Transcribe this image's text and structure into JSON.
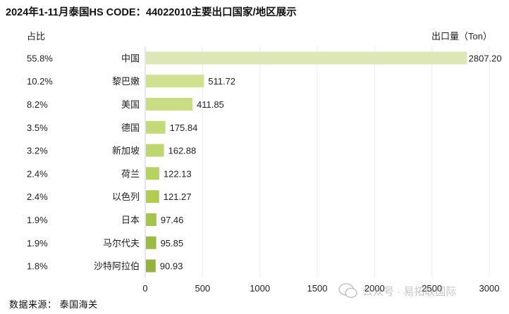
{
  "title": "2024年1-11月泰国HS CODE：44022010主要出口国家/地区展示",
  "share_header": "占比",
  "unit_label": "出口量（Ton）",
  "source_note": "数据来源： 泰国海关",
  "watermark_text": "公众号 · 易拓联国际",
  "chart_data": {
    "type": "bar",
    "orientation": "horizontal",
    "categories": [
      "中国",
      "黎巴嫩",
      "美国",
      "德国",
      "新加坡",
      "荷兰",
      "以色列",
      "日本",
      "马尔代夫",
      "沙特阿拉伯"
    ],
    "values": [
      2807.2,
      511.72,
      411.85,
      175.84,
      162.88,
      122.13,
      121.27,
      97.46,
      95.85,
      90.93
    ],
    "value_labels": [
      "2807.20",
      "511.72",
      "411.85",
      "175.84",
      "162.88",
      "122.13",
      "121.27",
      "97.46",
      "95.85",
      "90.93"
    ],
    "shares": [
      "55.8%",
      "10.2%",
      "8.2%",
      "3.5%",
      "3.2%",
      "2.4%",
      "2.4%",
      "1.9%",
      "1.9%",
      "1.8%"
    ],
    "xlim": [
      0,
      3000
    ],
    "xticks": [
      "0",
      "500",
      "1000",
      "1500",
      "2000",
      "2500",
      "3000"
    ],
    "grid": true,
    "colors": [
      "#dde7b6",
      "#cfe08f",
      "#c9dd85",
      "#c3da78",
      "#bdd66d",
      "#b7d25f",
      "#b0cd52",
      "#a5c44a",
      "#9cbb42",
      "#94b33d"
    ]
  }
}
